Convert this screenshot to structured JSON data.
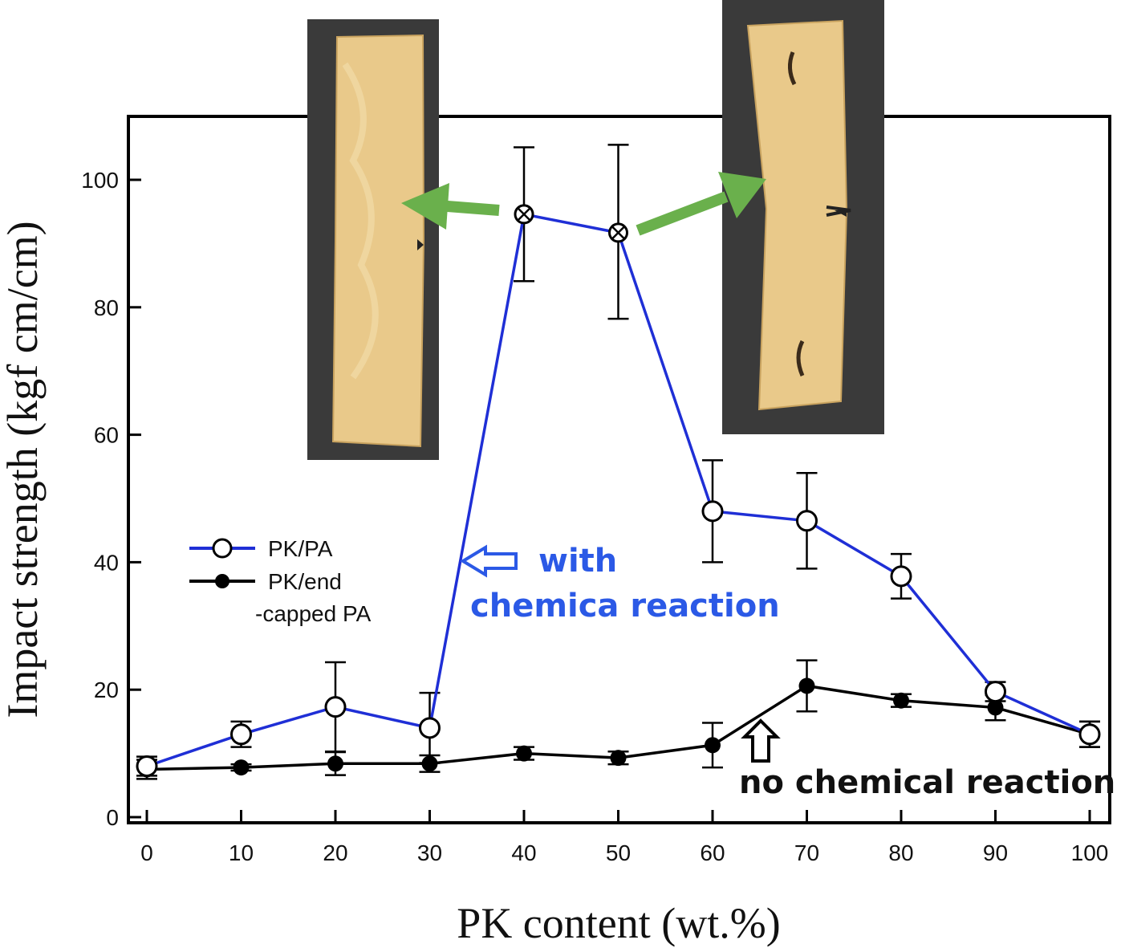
{
  "chart_data": {
    "type": "line",
    "xlabel": "PK content (wt.%)",
    "ylabel": "Impact strength (kgf cm/cm)",
    "xlim": [
      -2,
      102
    ],
    "ylim": [
      -1,
      110
    ],
    "xticks": [
      0,
      10,
      20,
      30,
      40,
      50,
      60,
      70,
      80,
      90,
      100
    ],
    "yticks": [
      0,
      20,
      40,
      60,
      80,
      100
    ],
    "x": [
      0,
      10,
      20,
      30,
      40,
      50,
      60,
      70,
      80,
      90,
      100
    ],
    "series": [
      {
        "name": "PK/PA",
        "color": "#1f2fd6",
        "marker": "open-circle",
        "values": [
          8,
          13,
          17.3,
          14,
          94.6,
          91.7,
          48,
          46.5,
          37.8,
          19.7,
          13
        ],
        "err_low": [
          1.5,
          2,
          7,
          5.5,
          10.5,
          13.5,
          8,
          7.5,
          3.5,
          1.5,
          2
        ],
        "err_high": [
          1.5,
          2,
          7,
          5.5,
          10.5,
          13.8,
          8,
          7.5,
          3.5,
          1.5,
          2
        ],
        "special_markers": [
          40,
          50
        ]
      },
      {
        "name": "PK/end\n-capped PA",
        "legend_line1": "PK/end",
        "legend_line2": "-capped PA",
        "color": "#000000",
        "marker": "filled-circle",
        "values": [
          7.5,
          7.8,
          8.4,
          8.4,
          10,
          9.3,
          11.3,
          20.6,
          18.3,
          17.2,
          13
        ],
        "err_low": [
          1.5,
          0.5,
          1.8,
          1.3,
          1,
          1,
          3.5,
          4,
          1,
          2,
          2
        ],
        "err_high": [
          1.5,
          0.5,
          1.8,
          1.3,
          1,
          1,
          3.5,
          4,
          1,
          2,
          2
        ]
      }
    ],
    "annotations": {
      "with_line1": "with",
      "with_line2": "chemica reaction",
      "no_reaction": "no chemical reaction"
    },
    "colors": {
      "arrow_green": "#6ab04c",
      "annot_blue": "#2b59e6",
      "photo_bg": "#3a3a3a",
      "specimen": "#e9c98a"
    }
  }
}
